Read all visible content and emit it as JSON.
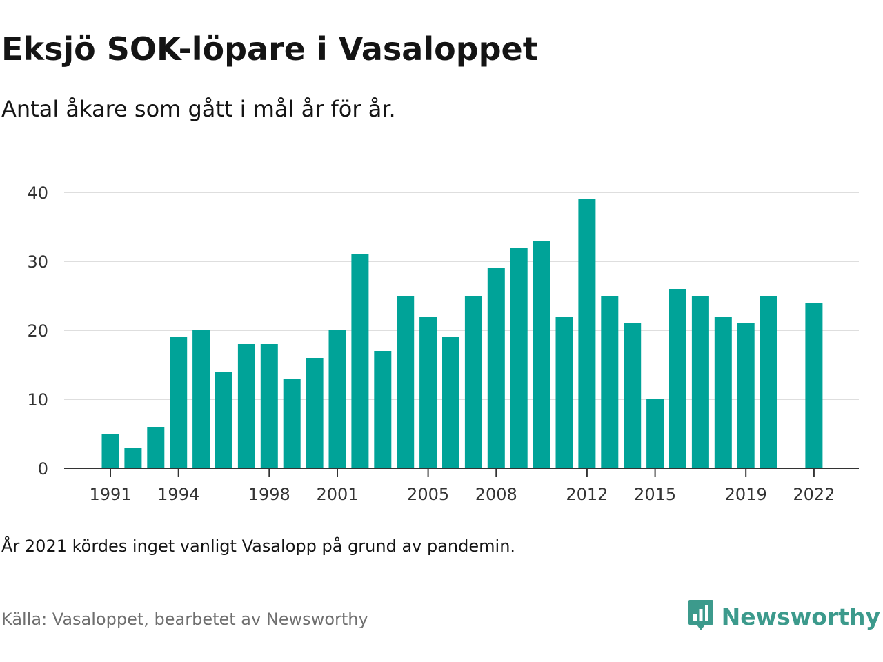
{
  "header": {
    "title": "Eksjö SOK-löpare i Vasaloppet",
    "subtitle": "Antal åkare som gått i mål år för år."
  },
  "footer": {
    "note": "År 2021 kördes inget vanligt Vasalopp på grund av pandemin.",
    "source": "Källa: Vasaloppet, bearbetet av Newsworthy",
    "brand_name": "Newsworthy",
    "brand_icon": "newsworthy-logo-icon"
  },
  "colors": {
    "bar": "#00a398",
    "grid": "#dedede",
    "axis": "#333333",
    "brand": "#3c9a8c"
  },
  "chart_data": {
    "type": "bar",
    "years": [
      1991,
      1992,
      1993,
      1994,
      1995,
      1996,
      1997,
      1998,
      1999,
      2000,
      2001,
      2002,
      2003,
      2004,
      2005,
      2006,
      2007,
      2008,
      2009,
      2010,
      2011,
      2012,
      2013,
      2014,
      2015,
      2016,
      2017,
      2018,
      2019,
      2020,
      2021,
      2022
    ],
    "values": [
      5,
      3,
      6,
      19,
      20,
      14,
      18,
      18,
      13,
      16,
      20,
      31,
      17,
      25,
      22,
      19,
      25,
      29,
      32,
      33,
      22,
      39,
      25,
      21,
      10,
      26,
      25,
      22,
      21,
      25,
      null,
      24
    ],
    "x_ticks": [
      "1991",
      "1994",
      "1998",
      "2001",
      "2005",
      "2008",
      "2012",
      "2015",
      "2019",
      "2022"
    ],
    "y_ticks": [
      "0",
      "10",
      "20",
      "30",
      "40"
    ],
    "ylim": [
      0,
      40
    ],
    "grid": true,
    "xlabel": "",
    "ylabel": ""
  }
}
